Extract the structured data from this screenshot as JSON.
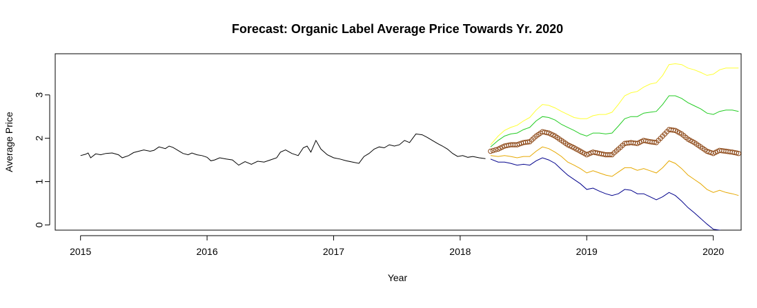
{
  "chart_data": {
    "type": "line",
    "title": "Forecast: Organic Label Average Price Towards Yr. 2020",
    "xlabel": "Year",
    "ylabel": "Average Price",
    "xlim": [
      2014.8,
      2020.22
    ],
    "ylim": [
      -0.12,
      3.95
    ],
    "x_ticks": [
      2015,
      2016,
      2017,
      2018,
      2019,
      2020
    ],
    "y_ticks": [
      0,
      1,
      2,
      3
    ],
    "grid": false,
    "legend": "none",
    "colors": {
      "history": "#000000",
      "forecast_points": "#8B4513",
      "upper95": "#FFFF33",
      "upper80": "#22CC22",
      "lower80": "#E6A800",
      "lower95": "#00008B"
    },
    "series": [
      {
        "role": "history",
        "points": [
          [
            2015.0,
            1.6
          ],
          [
            2015.04,
            1.63
          ],
          [
            2015.06,
            1.66
          ],
          [
            2015.08,
            1.55
          ],
          [
            2015.12,
            1.64
          ],
          [
            2015.16,
            1.62
          ],
          [
            2015.2,
            1.65
          ],
          [
            2015.25,
            1.66
          ],
          [
            2015.3,
            1.62
          ],
          [
            2015.33,
            1.55
          ],
          [
            2015.38,
            1.6
          ],
          [
            2015.42,
            1.67
          ],
          [
            2015.46,
            1.7
          ],
          [
            2015.5,
            1.73
          ],
          [
            2015.55,
            1.7
          ],
          [
            2015.58,
            1.72
          ],
          [
            2015.62,
            1.8
          ],
          [
            2015.67,
            1.76
          ],
          [
            2015.7,
            1.82
          ],
          [
            2015.73,
            1.79
          ],
          [
            2015.77,
            1.72
          ],
          [
            2015.81,
            1.65
          ],
          [
            2015.85,
            1.62
          ],
          [
            2015.88,
            1.66
          ],
          [
            2015.92,
            1.62
          ],
          [
            2015.96,
            1.6
          ],
          [
            2016.0,
            1.56
          ],
          [
            2016.03,
            1.48
          ],
          [
            2016.06,
            1.5
          ],
          [
            2016.1,
            1.55
          ],
          [
            2016.15,
            1.52
          ],
          [
            2016.2,
            1.5
          ],
          [
            2016.25,
            1.38
          ],
          [
            2016.3,
            1.46
          ],
          [
            2016.35,
            1.4
          ],
          [
            2016.4,
            1.47
          ],
          [
            2016.45,
            1.45
          ],
          [
            2016.5,
            1.5
          ],
          [
            2016.55,
            1.55
          ],
          [
            2016.58,
            1.68
          ],
          [
            2016.62,
            1.73
          ],
          [
            2016.67,
            1.65
          ],
          [
            2016.72,
            1.6
          ],
          [
            2016.76,
            1.78
          ],
          [
            2016.79,
            1.82
          ],
          [
            2016.82,
            1.68
          ],
          [
            2016.86,
            1.95
          ],
          [
            2016.9,
            1.75
          ],
          [
            2016.95,
            1.62
          ],
          [
            2017.0,
            1.55
          ],
          [
            2017.05,
            1.52
          ],
          [
            2017.1,
            1.48
          ],
          [
            2017.15,
            1.45
          ],
          [
            2017.2,
            1.42
          ],
          [
            2017.24,
            1.58
          ],
          [
            2017.28,
            1.65
          ],
          [
            2017.32,
            1.75
          ],
          [
            2017.36,
            1.8
          ],
          [
            2017.4,
            1.78
          ],
          [
            2017.44,
            1.85
          ],
          [
            2017.48,
            1.82
          ],
          [
            2017.52,
            1.85
          ],
          [
            2017.56,
            1.95
          ],
          [
            2017.6,
            1.9
          ],
          [
            2017.65,
            2.1
          ],
          [
            2017.7,
            2.08
          ],
          [
            2017.74,
            2.02
          ],
          [
            2017.78,
            1.95
          ],
          [
            2017.82,
            1.88
          ],
          [
            2017.86,
            1.82
          ],
          [
            2017.9,
            1.75
          ],
          [
            2017.94,
            1.65
          ],
          [
            2017.98,
            1.58
          ],
          [
            2018.02,
            1.6
          ],
          [
            2018.06,
            1.56
          ],
          [
            2018.1,
            1.58
          ],
          [
            2018.15,
            1.55
          ],
          [
            2018.2,
            1.53
          ]
        ]
      },
      {
        "role": "forecast",
        "points": [
          [
            2018.24,
            1.7
          ],
          [
            2018.3,
            1.75
          ],
          [
            2018.35,
            1.82
          ],
          [
            2018.4,
            1.85
          ],
          [
            2018.45,
            1.85
          ],
          [
            2018.5,
            1.9
          ],
          [
            2018.55,
            1.92
          ],
          [
            2018.6,
            2.05
          ],
          [
            2018.65,
            2.15
          ],
          [
            2018.7,
            2.12
          ],
          [
            2018.75,
            2.05
          ],
          [
            2018.8,
            1.95
          ],
          [
            2018.85,
            1.85
          ],
          [
            2018.9,
            1.78
          ],
          [
            2018.95,
            1.7
          ],
          [
            2019.0,
            1.62
          ],
          [
            2019.05,
            1.68
          ],
          [
            2019.1,
            1.65
          ],
          [
            2019.15,
            1.62
          ],
          [
            2019.2,
            1.62
          ],
          [
            2019.25,
            1.75
          ],
          [
            2019.3,
            1.88
          ],
          [
            2019.35,
            1.9
          ],
          [
            2019.4,
            1.88
          ],
          [
            2019.45,
            1.95
          ],
          [
            2019.5,
            1.92
          ],
          [
            2019.55,
            1.9
          ],
          [
            2019.6,
            2.05
          ],
          [
            2019.65,
            2.2
          ],
          [
            2019.7,
            2.18
          ],
          [
            2019.75,
            2.1
          ],
          [
            2019.8,
            1.98
          ],
          [
            2019.85,
            1.9
          ],
          [
            2019.9,
            1.8
          ],
          [
            2019.95,
            1.7
          ],
          [
            2020.0,
            1.65
          ],
          [
            2020.05,
            1.72
          ],
          [
            2020.1,
            1.7
          ],
          [
            2020.15,
            1.68
          ],
          [
            2020.2,
            1.65
          ]
        ]
      },
      {
        "role": "upper95",
        "points": [
          [
            2018.24,
            1.85
          ],
          [
            2018.3,
            2.05
          ],
          [
            2018.35,
            2.18
          ],
          [
            2018.4,
            2.25
          ],
          [
            2018.45,
            2.3
          ],
          [
            2018.5,
            2.4
          ],
          [
            2018.55,
            2.48
          ],
          [
            2018.6,
            2.65
          ],
          [
            2018.65,
            2.78
          ],
          [
            2018.7,
            2.76
          ],
          [
            2018.75,
            2.7
          ],
          [
            2018.8,
            2.62
          ],
          [
            2018.85,
            2.55
          ],
          [
            2018.9,
            2.48
          ],
          [
            2018.95,
            2.45
          ],
          [
            2019.0,
            2.45
          ],
          [
            2019.05,
            2.52
          ],
          [
            2019.1,
            2.55
          ],
          [
            2019.15,
            2.55
          ],
          [
            2019.2,
            2.6
          ],
          [
            2019.25,
            2.78
          ],
          [
            2019.3,
            2.98
          ],
          [
            2019.35,
            3.05
          ],
          [
            2019.4,
            3.08
          ],
          [
            2019.45,
            3.18
          ],
          [
            2019.5,
            3.25
          ],
          [
            2019.55,
            3.28
          ],
          [
            2019.6,
            3.45
          ],
          [
            2019.65,
            3.7
          ],
          [
            2019.7,
            3.72
          ],
          [
            2019.75,
            3.7
          ],
          [
            2019.8,
            3.62
          ],
          [
            2019.85,
            3.58
          ],
          [
            2019.9,
            3.52
          ],
          [
            2019.95,
            3.45
          ],
          [
            2020.0,
            3.48
          ],
          [
            2020.05,
            3.58
          ],
          [
            2020.1,
            3.62
          ],
          [
            2020.15,
            3.62
          ],
          [
            2020.2,
            3.62
          ]
        ]
      },
      {
        "role": "upper80",
        "points": [
          [
            2018.24,
            1.8
          ],
          [
            2018.3,
            1.95
          ],
          [
            2018.35,
            2.05
          ],
          [
            2018.4,
            2.1
          ],
          [
            2018.45,
            2.12
          ],
          [
            2018.5,
            2.2
          ],
          [
            2018.55,
            2.25
          ],
          [
            2018.6,
            2.4
          ],
          [
            2018.65,
            2.5
          ],
          [
            2018.7,
            2.48
          ],
          [
            2018.75,
            2.42
          ],
          [
            2018.8,
            2.32
          ],
          [
            2018.85,
            2.25
          ],
          [
            2018.9,
            2.18
          ],
          [
            2018.95,
            2.1
          ],
          [
            2019.0,
            2.05
          ],
          [
            2019.05,
            2.12
          ],
          [
            2019.1,
            2.12
          ],
          [
            2019.15,
            2.1
          ],
          [
            2019.2,
            2.12
          ],
          [
            2019.25,
            2.28
          ],
          [
            2019.3,
            2.45
          ],
          [
            2019.35,
            2.5
          ],
          [
            2019.4,
            2.5
          ],
          [
            2019.45,
            2.58
          ],
          [
            2019.5,
            2.6
          ],
          [
            2019.55,
            2.62
          ],
          [
            2019.6,
            2.78
          ],
          [
            2019.65,
            2.98
          ],
          [
            2019.7,
            2.98
          ],
          [
            2019.75,
            2.92
          ],
          [
            2019.8,
            2.82
          ],
          [
            2019.85,
            2.75
          ],
          [
            2019.9,
            2.68
          ],
          [
            2019.95,
            2.58
          ],
          [
            2020.0,
            2.55
          ],
          [
            2020.05,
            2.62
          ],
          [
            2020.1,
            2.65
          ],
          [
            2020.15,
            2.65
          ],
          [
            2020.2,
            2.62
          ]
        ]
      },
      {
        "role": "lower80",
        "points": [
          [
            2018.24,
            1.6
          ],
          [
            2018.3,
            1.58
          ],
          [
            2018.35,
            1.6
          ],
          [
            2018.4,
            1.58
          ],
          [
            2018.45,
            1.55
          ],
          [
            2018.5,
            1.58
          ],
          [
            2018.55,
            1.58
          ],
          [
            2018.6,
            1.7
          ],
          [
            2018.65,
            1.8
          ],
          [
            2018.7,
            1.76
          ],
          [
            2018.75,
            1.68
          ],
          [
            2018.8,
            1.58
          ],
          [
            2018.85,
            1.45
          ],
          [
            2018.9,
            1.38
          ],
          [
            2018.95,
            1.3
          ],
          [
            2019.0,
            1.2
          ],
          [
            2019.05,
            1.25
          ],
          [
            2019.1,
            1.2
          ],
          [
            2019.15,
            1.15
          ],
          [
            2019.2,
            1.12
          ],
          [
            2019.25,
            1.22
          ],
          [
            2019.3,
            1.32
          ],
          [
            2019.35,
            1.32
          ],
          [
            2019.4,
            1.26
          ],
          [
            2019.45,
            1.3
          ],
          [
            2019.5,
            1.25
          ],
          [
            2019.55,
            1.2
          ],
          [
            2019.6,
            1.32
          ],
          [
            2019.65,
            1.48
          ],
          [
            2019.7,
            1.42
          ],
          [
            2019.75,
            1.3
          ],
          [
            2019.8,
            1.15
          ],
          [
            2019.85,
            1.05
          ],
          [
            2019.9,
            0.95
          ],
          [
            2019.95,
            0.82
          ],
          [
            2020.0,
            0.75
          ],
          [
            2020.05,
            0.8
          ],
          [
            2020.1,
            0.75
          ],
          [
            2020.15,
            0.72
          ],
          [
            2020.2,
            0.68
          ]
        ]
      },
      {
        "role": "lower95",
        "points": [
          [
            2018.24,
            1.52
          ],
          [
            2018.3,
            1.45
          ],
          [
            2018.35,
            1.45
          ],
          [
            2018.4,
            1.42
          ],
          [
            2018.45,
            1.38
          ],
          [
            2018.5,
            1.4
          ],
          [
            2018.55,
            1.38
          ],
          [
            2018.6,
            1.48
          ],
          [
            2018.65,
            1.55
          ],
          [
            2018.7,
            1.5
          ],
          [
            2018.75,
            1.42
          ],
          [
            2018.8,
            1.28
          ],
          [
            2018.85,
            1.15
          ],
          [
            2018.9,
            1.05
          ],
          [
            2018.95,
            0.95
          ],
          [
            2019.0,
            0.82
          ],
          [
            2019.05,
            0.85
          ],
          [
            2019.1,
            0.78
          ],
          [
            2019.15,
            0.72
          ],
          [
            2019.2,
            0.68
          ],
          [
            2019.25,
            0.72
          ],
          [
            2019.3,
            0.82
          ],
          [
            2019.35,
            0.8
          ],
          [
            2019.4,
            0.72
          ],
          [
            2019.45,
            0.72
          ],
          [
            2019.5,
            0.65
          ],
          [
            2019.55,
            0.58
          ],
          [
            2019.6,
            0.65
          ],
          [
            2019.65,
            0.75
          ],
          [
            2019.7,
            0.68
          ],
          [
            2019.75,
            0.55
          ],
          [
            2019.8,
            0.4
          ],
          [
            2019.85,
            0.28
          ],
          [
            2019.9,
            0.15
          ],
          [
            2019.95,
            0.02
          ],
          [
            2020.0,
            -0.1
          ],
          [
            2020.05,
            -0.12
          ],
          [
            2020.1,
            -0.15
          ],
          [
            2020.15,
            -0.18
          ],
          [
            2020.2,
            -0.2
          ]
        ]
      }
    ]
  }
}
